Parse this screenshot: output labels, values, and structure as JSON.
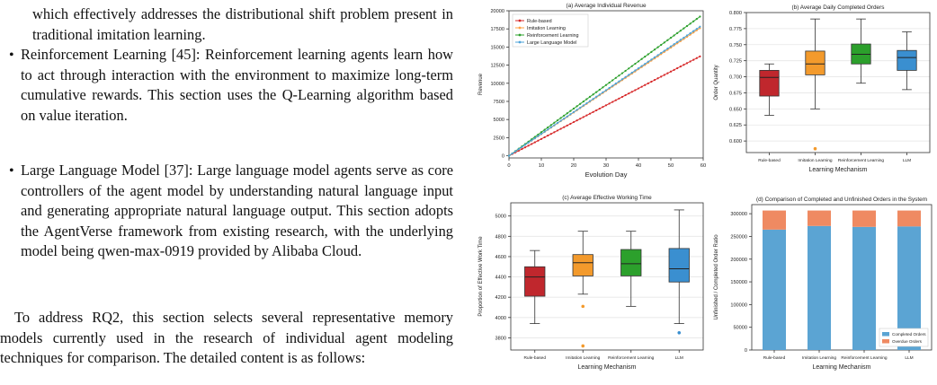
{
  "text": {
    "intro_tail": "which effectively addresses the distributional shift problem present in traditional imitation learning.",
    "bullets": [
      {
        "text": "Reinforcement Learning [45]: Reinforcement learning agents learn how to act through interaction with the environment to maximize long-term cumulative rewards. This section uses the Q-Learning algorithm based on value iteration."
      },
      {
        "text": "Large Language Model [37]: Large language model agents serve as core controllers of the agent model by understanding natural language input and generating appropriate natural language output. This section adopts the AgentVerse framework from existing research, with the underlying model being qwen-max-0919 provided by Alibaba Cloud."
      }
    ],
    "rq2_paragraph": "To address RQ2, this section selects several representative memory models currently used in the research of individual agent modeling techniques for comparison. The detailed content is as follows:"
  },
  "chart_data": [
    {
      "type": "line",
      "title": "(a)  Average Individual Revenue",
      "xlabel": "Evolution Day",
      "ylabel": "Revenue",
      "xlim": [
        0,
        60
      ],
      "ylim": [
        -300,
        20000
      ],
      "xticks": [
        0,
        10,
        20,
        30,
        40,
        50,
        60
      ],
      "yticks": [
        0,
        2500,
        5000,
        7500,
        10000,
        12500,
        15000,
        17500,
        20000
      ],
      "legend_position": "top-left",
      "series": [
        {
          "name": "Rule-based",
          "color": "#d62728",
          "marker": "circle",
          "x": [
            0,
            59
          ],
          "y": [
            0,
            13700
          ]
        },
        {
          "name": "Imitation Learning",
          "color": "#ff9f40",
          "marker": "star",
          "x": [
            0,
            59
          ],
          "y": [
            0,
            17600
          ]
        },
        {
          "name": "Reinforcement Learning",
          "color": "#2ca02c",
          "marker": "diamond",
          "x": [
            0,
            59
          ],
          "y": [
            0,
            19200
          ]
        },
        {
          "name": "Large Language Model",
          "color": "#4da3d9",
          "marker": "triangle",
          "x": [
            0,
            59
          ],
          "y": [
            0,
            17800
          ]
        }
      ]
    },
    {
      "type": "box",
      "title": "(b)  Average Daily Completed Orders",
      "xlabel": "Learning Mechanism",
      "ylabel": "Order Quantity",
      "ylim": [
        0.582,
        0.8
      ],
      "yticks": [
        0.6,
        0.625,
        0.65,
        0.675,
        0.7,
        0.725,
        0.75,
        0.775,
        0.8
      ],
      "tick_format": 3,
      "categories": [
        "Rule-based",
        "Imitation Learning",
        "Reinforcement Learning",
        "LLM"
      ],
      "colors": [
        "#c0272d",
        "#f39a2c",
        "#2ca02c",
        "#3a8fd0"
      ],
      "boxes": [
        {
          "whislo": 0.64,
          "q1": 0.67,
          "med": 0.699,
          "q3": 0.71,
          "whishi": 0.72,
          "fliers": []
        },
        {
          "whislo": 0.65,
          "q1": 0.703,
          "med": 0.72,
          "q3": 0.74,
          "whishi": 0.79,
          "fliers": [
            0.588
          ]
        },
        {
          "whislo": 0.69,
          "q1": 0.72,
          "med": 0.735,
          "q3": 0.751,
          "whishi": 0.79,
          "fliers": []
        },
        {
          "whislo": 0.68,
          "q1": 0.71,
          "med": 0.73,
          "q3": 0.741,
          "whishi": 0.77,
          "fliers": []
        }
      ]
    },
    {
      "type": "box",
      "title": "(c)  Average Effective Working Time",
      "xlabel": "Learning Mechanism",
      "ylabel": "Proportion of Effective Work Time",
      "ylim": [
        3680,
        5130
      ],
      "yticks": [
        3800,
        4000,
        4200,
        4400,
        4600,
        4800,
        5000
      ],
      "tick_format": 0,
      "categories": [
        "Rule-based",
        "Imitation Learning",
        "Reinforcement Learning",
        "LLM"
      ],
      "colors": [
        "#c0272d",
        "#f39a2c",
        "#2ca02c",
        "#3a8fd0"
      ],
      "boxes": [
        {
          "whislo": 3940,
          "q1": 4210,
          "med": 4400,
          "q3": 4500,
          "whishi": 4660,
          "fliers": []
        },
        {
          "whislo": 4230,
          "q1": 4410,
          "med": 4540,
          "q3": 4620,
          "whishi": 4850,
          "fliers": [
            4110,
            3720
          ]
        },
        {
          "whislo": 4110,
          "q1": 4410,
          "med": 4530,
          "q3": 4670,
          "whishi": 4850,
          "fliers": []
        },
        {
          "whislo": 3940,
          "q1": 4350,
          "med": 4480,
          "q3": 4680,
          "whishi": 5060,
          "fliers": [
            3850
          ]
        }
      ]
    },
    {
      "type": "stacked_bar",
      "title": "(d)  Comparison of Completed and Unfinished Orders in the System",
      "xlabel": "Learning Mechanism",
      "ylabel": "Unfinished / Completed Order Ratio",
      "ylim": [
        0,
        320000
      ],
      "yticks": [
        0,
        50000,
        100000,
        150000,
        200000,
        250000,
        300000
      ],
      "legend_position": "bottom-right",
      "categories": [
        "Rule-based",
        "Imitation Learning",
        "Reinforcement Learning",
        "LLM"
      ],
      "series": [
        {
          "name": "Completed Orders",
          "color": "#5ba4d3",
          "values": [
            265000,
            273000,
            271000,
            272000
          ]
        },
        {
          "name": "Overdue Orders",
          "color": "#ef8a62",
          "values": [
            42000,
            34000,
            36000,
            35000
          ]
        }
      ]
    }
  ]
}
